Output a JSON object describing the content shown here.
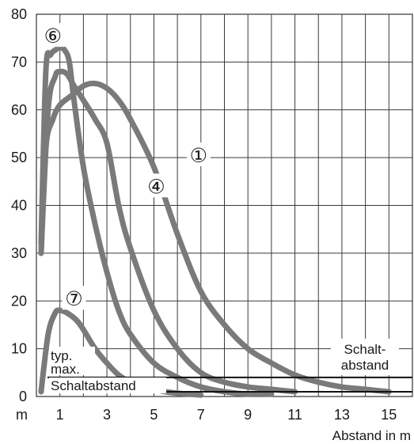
{
  "chart_data": {
    "type": "line",
    "xlabel": "Abstand in m",
    "x_unit_label": "m",
    "x_ticks": [
      1,
      3,
      5,
      7,
      9,
      11,
      13,
      15
    ],
    "y_ticks": [
      0,
      10,
      20,
      30,
      40,
      50,
      60,
      70,
      80
    ],
    "xlim": [
      0,
      16
    ],
    "ylim": [
      0,
      80
    ],
    "grid": true,
    "series": [
      {
        "name": "①",
        "x": [
          0.2,
          0.4,
          0.7,
          1.0,
          1.5,
          2.0,
          2.5,
          3.0,
          3.5,
          4.0,
          5.0,
          6.0,
          7.0,
          8.0,
          9.0,
          10.0,
          11.0,
          12.0,
          13.0,
          14.0,
          15.0
        ],
        "y": [
          30,
          52,
          58,
          61,
          63,
          65,
          65.5,
          64.5,
          62,
          58,
          48,
          34,
          22,
          15,
          10,
          7,
          4.5,
          3,
          2,
          1.5,
          1
        ]
      },
      {
        "name": "④",
        "x": [
          0.2,
          0.5,
          0.8,
          1.0,
          1.3,
          1.6,
          2.0,
          2.5,
          3.0,
          3.5,
          4.0,
          5.0,
          6.0,
          7.0,
          8.0,
          9.0,
          10.0,
          11.0
        ],
        "y": [
          30,
          60,
          67,
          68,
          67.5,
          65,
          62,
          58,
          53,
          40,
          31,
          18,
          10,
          5,
          3,
          2,
          1.5,
          1
        ]
      },
      {
        "name": "⑥",
        "x": [
          0.2,
          0.4,
          0.6,
          0.8,
          1.0,
          1.2,
          1.4,
          1.6,
          2.0,
          2.5,
          3.0,
          3.5,
          4.0,
          5.0,
          6.0,
          7.0,
          8.0,
          9.0,
          10.0
        ],
        "y": [
          32,
          68,
          71.5,
          72.5,
          73,
          72.5,
          70,
          62,
          48,
          36,
          26,
          18,
          13,
          7,
          4,
          2,
          1,
          0.5,
          0.5
        ]
      },
      {
        "name": "⑦",
        "x": [
          0.2,
          0.5,
          0.8,
          1.0,
          1.3,
          1.7,
          2.0,
          2.5,
          3.0,
          3.5,
          4.0,
          4.5,
          5.0,
          5.5,
          6.0,
          7.0
        ],
        "y": [
          1,
          13,
          17.5,
          18,
          17.5,
          16,
          14,
          10,
          7,
          4.5,
          3,
          2,
          1.5,
          1,
          0.7,
          0.3
        ]
      }
    ],
    "thresholds": [
      {
        "label": "Schalt-\nabstand",
        "y": 4
      },
      {
        "label": "typ.\nmax.\nSchaltabstand",
        "y": 1
      }
    ]
  }
}
